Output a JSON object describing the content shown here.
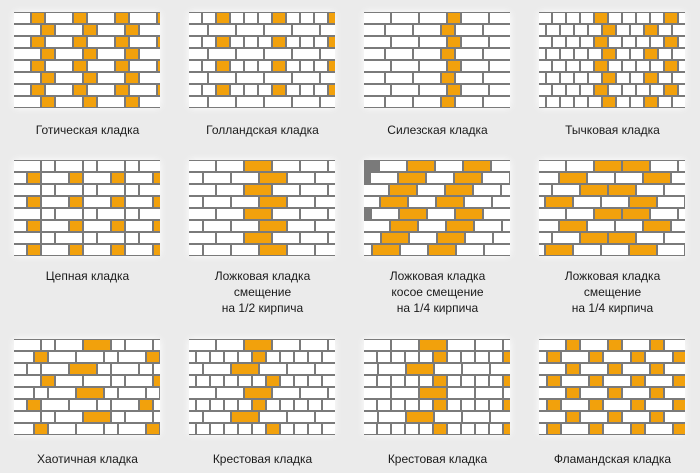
{
  "colors": {
    "background": "#ebebeb",
    "mortar": "#7a7a7a",
    "brick": "#ffffff",
    "accent": "#f2a10c"
  },
  "items": [
    {
      "name": "gothic-bond",
      "lines": [
        "Готическая кладка"
      ]
    },
    {
      "name": "dutch-bond",
      "lines": [
        "Голландская кладка"
      ]
    },
    {
      "name": "silesian-bond",
      "lines": [
        "Силезская кладка"
      ]
    },
    {
      "name": "header-bond",
      "lines": [
        "Тычковая кладка"
      ]
    },
    {
      "name": "chain-bond",
      "lines": [
        "Цепная кладка"
      ]
    },
    {
      "name": "stretcher-half-offset",
      "lines": [
        "Ложковая кладка",
        "смещение",
        "на 1/2 кирпича"
      ]
    },
    {
      "name": "stretcher-diagonal-quarter-offset",
      "lines": [
        "Ложковая кладка",
        "косое смещение",
        "на 1/4 кирпича"
      ]
    },
    {
      "name": "stretcher-quarter-offset",
      "lines": [
        "Ложковая кладка",
        "смещение",
        "на 1/4 кирпича"
      ]
    },
    {
      "name": "chaotic-bond",
      "lines": [
        "Хаотичная кладка"
      ]
    },
    {
      "name": "cross-bond-a",
      "lines": [
        "Крестовая кладка"
      ]
    },
    {
      "name": "cross-bond-b",
      "lines": [
        "Крестовая кладка"
      ]
    },
    {
      "name": "flemish-bond",
      "lines": [
        "Фламандская кладка"
      ]
    }
  ]
}
